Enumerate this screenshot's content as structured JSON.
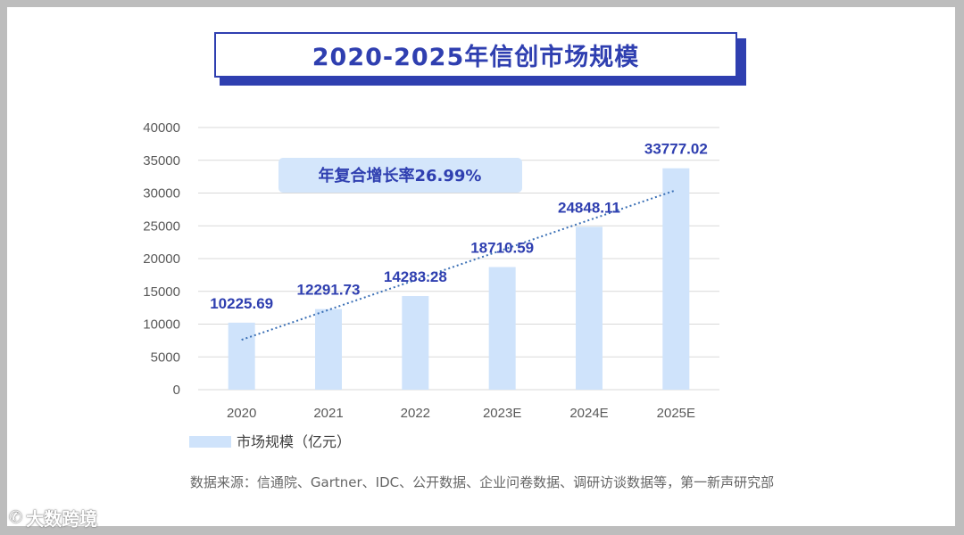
{
  "chart_data": {
    "type": "bar",
    "title": "2020-2025年信创市场规模",
    "categories": [
      "2020",
      "2021",
      "2022",
      "2023E",
      "2024E",
      "2025E"
    ],
    "series": [
      {
        "name": "市场规模（亿元）",
        "values": [
          10225.69,
          12291.73,
          14283.28,
          18710.59,
          24848.11,
          33777.02
        ]
      }
    ],
    "data_labels": [
      "10225.69",
      "12291.73",
      "14283.28",
      "18710.59",
      "24848.11",
      "33777.02"
    ],
    "y_ticks": [
      "40000",
      "35000",
      "30000",
      "25000",
      "20000",
      "15000",
      "10000",
      "5000",
      "0"
    ],
    "ylim": [
      0,
      40000
    ],
    "trendline": "dotted linear",
    "annotation": "年复合增长率26.99%",
    "legend_position": "bottom-left",
    "grid": true,
    "colors": {
      "bar": "#cfe3fb",
      "label": "#2f3fb0",
      "trend": "#3a6fb5",
      "annotation_bg": "#d4e6fb"
    }
  },
  "source_text": "数据来源：信通院、Gartner、IDC、公开数据、企业问卷数据、调研访谈数据等，第一新声研究部",
  "watermark": {
    "icon": "wechat-icon",
    "text": "大数跨境"
  }
}
